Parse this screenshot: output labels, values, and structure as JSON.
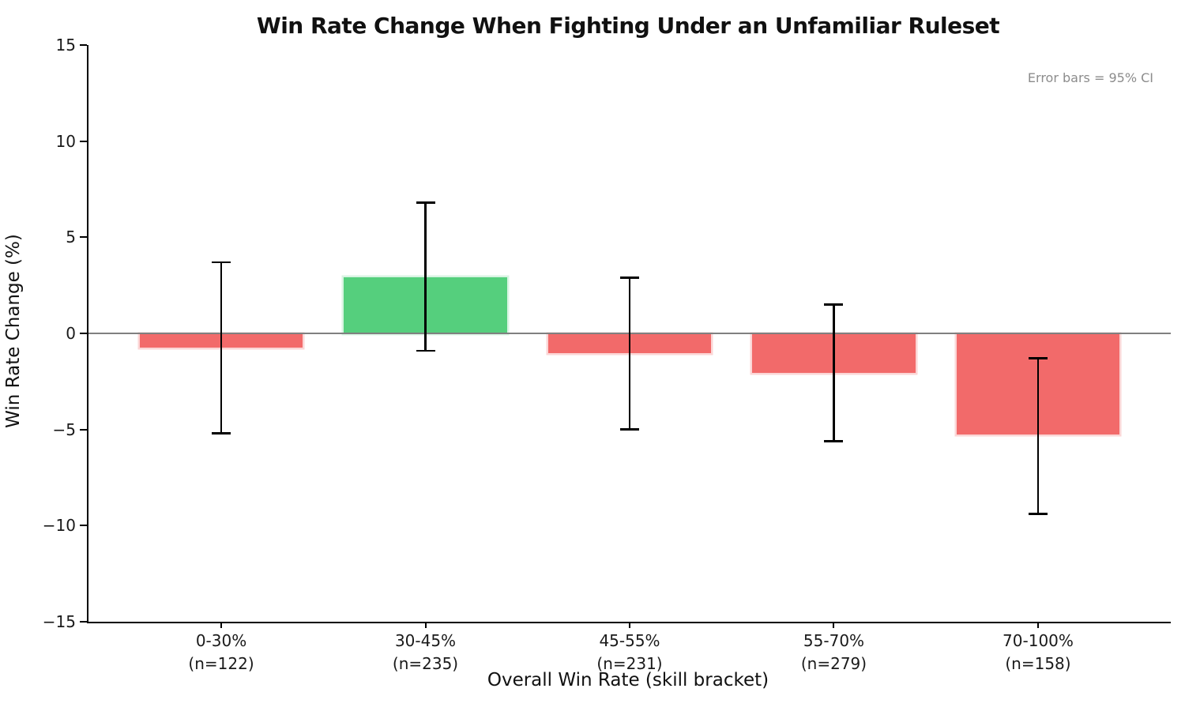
{
  "chart_data": {
    "type": "bar",
    "title": "Win Rate Change When Fighting Under an Unfamiliar Ruleset",
    "xlabel": "Overall Win Rate (skill bracket)",
    "ylabel": "Win Rate Change (%)",
    "annotation": "Error bars = 95% CI",
    "categories": [
      "0-30%",
      "30-45%",
      "45-55%",
      "55-70%",
      "70-100%"
    ],
    "sample_sizes": [
      122,
      235,
      231,
      279,
      158
    ],
    "tick_sublabels": [
      "(n=122)",
      "(n=235)",
      "(n=231)",
      "(n=279)",
      "(n=158)"
    ],
    "values": [
      -0.7,
      2.9,
      -1.0,
      -2.0,
      -5.2
    ],
    "ci_low": [
      -5.2,
      -0.9,
      -5.0,
      -5.6,
      -9.4
    ],
    "ci_high": [
      3.7,
      6.8,
      2.9,
      1.5,
      -1.3
    ],
    "ylim": [
      -15,
      15
    ],
    "yticks": [
      -15,
      -10,
      -5,
      0,
      5,
      10,
      15
    ],
    "grid": false,
    "legend": "none",
    "bar_width_fraction": 0.8,
    "colors": {
      "positive": "#55CF7D",
      "positive_edge": "#D9F4E3",
      "negative": "#F26A6A",
      "negative_edge": "#FBD6D6",
      "zero_line": "#808080",
      "axis": "#000000",
      "error_bar": "#000000",
      "annotation_text": "#8C8C8C"
    }
  }
}
